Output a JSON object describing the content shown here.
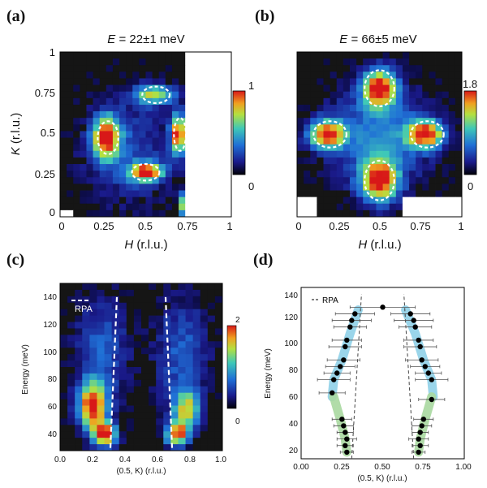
{
  "panels": [
    {
      "id": "a",
      "label": "(a)",
      "title_var": "E",
      "title_value": " = 22±1 meV",
      "type": "heatmap",
      "xlabel_var": "H",
      "xlabel_unit": " (r.l.u.)",
      "ylabel_var": "K",
      "ylabel_unit": " (r.l.u.)",
      "xticks": [
        "0",
        "0.25",
        "0.5",
        "0.75",
        "1"
      ],
      "yticks": [
        "0",
        "0.25",
        "0.5",
        "0.75",
        "1"
      ],
      "colorbar": {
        "max": "1",
        "min": "0"
      }
    },
    {
      "id": "b",
      "label": "(b)",
      "title_var": "E",
      "title_value": " = 66±5 meV",
      "type": "heatmap",
      "xlabel_var": "H",
      "xlabel_unit": " (r.l.u.)",
      "xticks": [
        "0",
        "0.25",
        "0.5",
        "0.75",
        "1"
      ],
      "colorbar": {
        "max": "1.8",
        "min": "0"
      }
    },
    {
      "id": "c",
      "label": "(c)",
      "type": "heatmap",
      "legend": "RPA",
      "xlabel": "(0.5, K) (r.l.u.)",
      "ylabel": "Energy (meV)",
      "xticks": [
        "0.0",
        "0.2",
        "0.4",
        "0.6",
        "0.8",
        "1.0"
      ],
      "yticks": [
        "40",
        "60",
        "80",
        "100",
        "120",
        "140"
      ],
      "colorbar": {
        "max": "2",
        "min": "0"
      }
    },
    {
      "id": "d",
      "label": "(d)",
      "type": "scatter",
      "legend": "RPA",
      "xlabel": "(0.5, K) (r.l.u.)",
      "ylabel": "Energy (meV)",
      "xticks": [
        "0.00",
        "0.25",
        "0.50",
        "0.75",
        "1.00"
      ],
      "yticks": [
        "20",
        "40",
        "60",
        "80",
        "100",
        "120",
        "140"
      ]
    }
  ],
  "chart_data": [
    {
      "type": "heatmap",
      "xlim": [
        0,
        1
      ],
      "ylim": [
        0,
        1
      ],
      "clim": [
        0,
        1
      ],
      "hotspots": [
        {
          "x": 0.27,
          "y": 0.48,
          "sx": 0.055,
          "sy": 0.09,
          "a": 1.0
        },
        {
          "x": 0.5,
          "y": 0.27,
          "sx": 0.07,
          "sy": 0.04,
          "a": 0.95
        },
        {
          "x": 0.55,
          "y": 0.74,
          "sx": 0.08,
          "sy": 0.04,
          "a": 0.7
        },
        {
          "x": 0.69,
          "y": 0.5,
          "sx": 0.03,
          "sy": 0.09,
          "a": 1.0
        },
        {
          "x": 0.73,
          "y": 0.08,
          "sx": 0.02,
          "sy": 0.05,
          "a": 1.0
        },
        {
          "x": 0.4,
          "y": 0.4,
          "sx": 0.2,
          "sy": 0.25,
          "a": 0.25
        }
      ],
      "dashed_ellipses": [
        {
          "x": 0.28,
          "y": 0.48,
          "rx": 0.06,
          "ry": 0.1
        },
        {
          "x": 0.5,
          "y": 0.27,
          "rx": 0.08,
          "ry": 0.05
        },
        {
          "x": 0.56,
          "y": 0.74,
          "rx": 0.08,
          "ry": 0.05
        },
        {
          "x": 0.7,
          "y": 0.5,
          "rx": 0.035,
          "ry": 0.1
        }
      ]
    },
    {
      "type": "heatmap",
      "xlim": [
        0,
        1
      ],
      "ylim": [
        0,
        1
      ],
      "clim": [
        0,
        1.8
      ],
      "hotspots": [
        {
          "x": 0.5,
          "y": 0.78,
          "sx": 0.07,
          "sy": 0.08,
          "a": 1.8
        },
        {
          "x": 0.18,
          "y": 0.5,
          "sx": 0.08,
          "sy": 0.06,
          "a": 1.7
        },
        {
          "x": 0.78,
          "y": 0.5,
          "sx": 0.08,
          "sy": 0.06,
          "a": 1.7
        },
        {
          "x": 0.5,
          "y": 0.22,
          "sx": 0.08,
          "sy": 0.09,
          "a": 1.8
        },
        {
          "x": 0.5,
          "y": 0.5,
          "sx": 0.22,
          "sy": 0.22,
          "a": 0.7
        }
      ],
      "dashed_ellipses": [
        {
          "x": 0.5,
          "y": 0.78,
          "rx": 0.09,
          "ry": 0.11
        },
        {
          "x": 0.2,
          "y": 0.5,
          "rx": 0.1,
          "ry": 0.08
        },
        {
          "x": 0.79,
          "y": 0.5,
          "rx": 0.1,
          "ry": 0.08
        },
        {
          "x": 0.5,
          "y": 0.22,
          "rx": 0.09,
          "ry": 0.12
        }
      ]
    },
    {
      "type": "heatmap",
      "xlim": [
        0,
        1
      ],
      "ylim": [
        28,
        150
      ],
      "clim": [
        0,
        2
      ],
      "hotspots": [
        {
          "x": 0.2,
          "y": 60,
          "sx": 0.06,
          "sy": 12,
          "a": 2.0
        },
        {
          "x": 0.28,
          "y": 40,
          "sx": 0.05,
          "sy": 6,
          "a": 2.0
        },
        {
          "x": 0.72,
          "y": 40,
          "sx": 0.05,
          "sy": 6,
          "a": 1.8
        },
        {
          "x": 0.78,
          "y": 58,
          "sx": 0.06,
          "sy": 10,
          "a": 1.4
        },
        {
          "x": 0.25,
          "y": 100,
          "sx": 0.12,
          "sy": 30,
          "a": 0.6
        },
        {
          "x": 0.75,
          "y": 100,
          "sx": 0.12,
          "sy": 30,
          "a": 0.6
        }
      ],
      "rpa_left": [
        [
          0.31,
          30
        ],
        [
          0.35,
          140
        ]
      ],
      "rpa_right": [
        [
          0.69,
          30
        ],
        [
          0.65,
          140
        ]
      ]
    },
    {
      "type": "scatter",
      "xlim": [
        0,
        1
      ],
      "ylim": [
        15,
        145
      ],
      "series": [
        {
          "x": [
            0.28,
            0.27,
            0.28,
            0.27,
            0.26,
            0.25,
            0.19,
            0.2,
            0.22,
            0.24,
            0.26,
            0.27,
            0.28,
            0.3,
            0.31,
            0.33,
            0.5
          ],
          "y": [
            20,
            25,
            30,
            35,
            40,
            45,
            65,
            75,
            80,
            85,
            90,
            100,
            105,
            115,
            120,
            125,
            130
          ],
          "xerr": [
            0.04,
            0.05,
            0.06,
            0.05,
            0.06,
            0.06,
            0.08,
            0.1,
            0.08,
            0.09,
            0.1,
            0.1,
            0.09,
            0.1,
            0.12,
            0.12,
            0.2
          ]
        },
        {
          "x": [
            0.72,
            0.73,
            0.72,
            0.73,
            0.74,
            0.75,
            0.8,
            0.8,
            0.78,
            0.76,
            0.74,
            0.73,
            0.72,
            0.7,
            0.69,
            0.67
          ],
          "y": [
            20,
            25,
            30,
            35,
            40,
            45,
            60,
            75,
            80,
            85,
            90,
            100,
            105,
            115,
            120,
            125
          ],
          "xerr": [
            0.04,
            0.05,
            0.06,
            0.05,
            0.06,
            0.06,
            0.08,
            0.1,
            0.08,
            0.09,
            0.1,
            0.1,
            0.09,
            0.1,
            0.12,
            0.12
          ]
        }
      ],
      "bands": [
        {
          "color": "#8fd0e8",
          "x": [
            0.35,
            0.3,
            0.25,
            0.2,
            0.19
          ],
          "y": [
            128,
            110,
            90,
            75,
            62
          ]
        },
        {
          "color": "#a8d8a0",
          "x": [
            0.2,
            0.24,
            0.27,
            0.28
          ],
          "y": [
            62,
            45,
            30,
            20
          ]
        },
        {
          "color": "#8fd0e8",
          "x": [
            0.64,
            0.7,
            0.75,
            0.8,
            0.81
          ],
          "y": [
            128,
            110,
            90,
            75,
            62
          ]
        },
        {
          "color": "#a8d8a0",
          "x": [
            0.8,
            0.76,
            0.73,
            0.72
          ],
          "y": [
            62,
            45,
            30,
            20
          ]
        }
      ],
      "rpa_left": [
        [
          0.31,
          15
        ],
        [
          0.37,
          140
        ]
      ],
      "rpa_right": [
        [
          0.69,
          15
        ],
        [
          0.63,
          140
        ]
      ]
    }
  ]
}
